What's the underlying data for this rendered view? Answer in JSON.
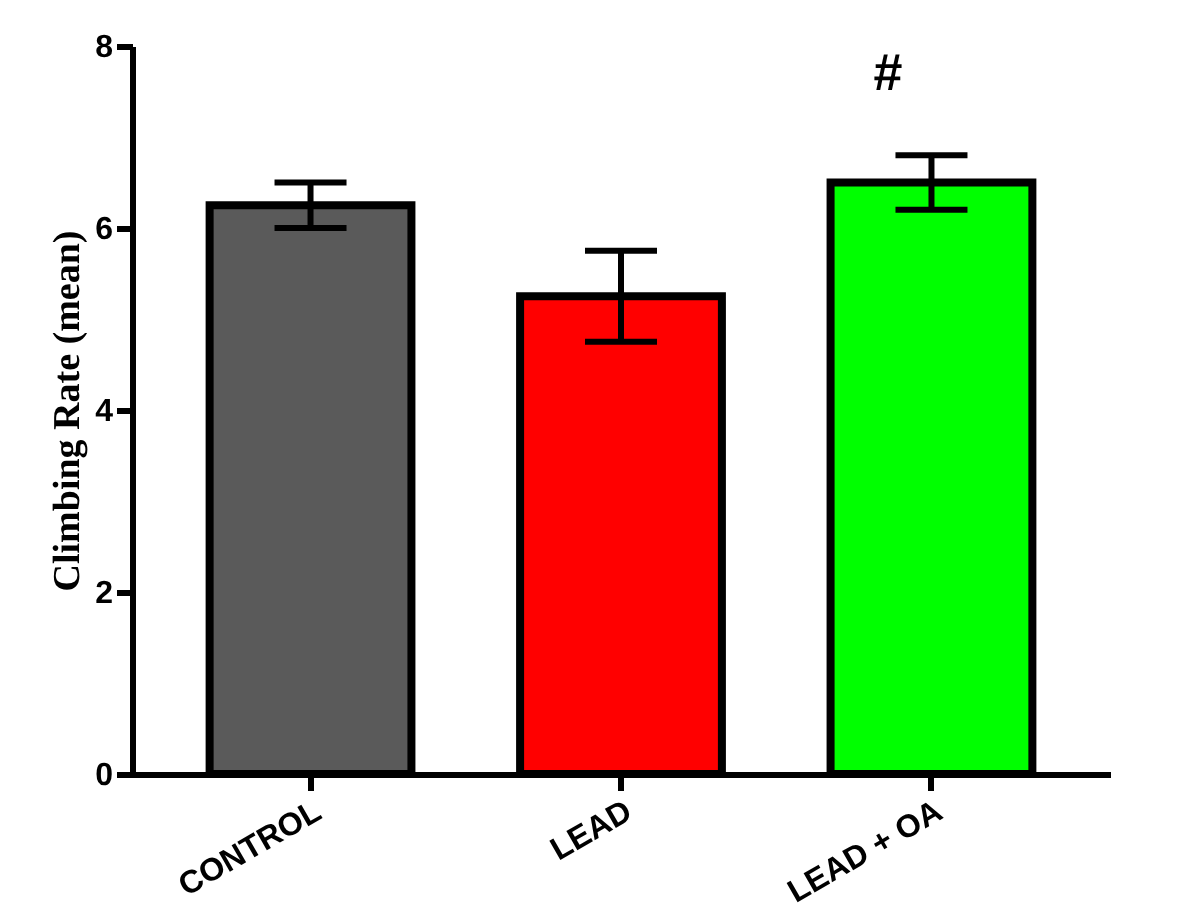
{
  "chart_data": {
    "type": "bar",
    "ylabel": "Climbing Rate (mean)",
    "categories": [
      "CONTROL",
      "LEAD",
      "LEAD + OA"
    ],
    "values": [
      6.25,
      5.25,
      6.5
    ],
    "colors": [
      "#5a5a5a",
      "#ff0000",
      "#00ff00"
    ],
    "errors": [
      0.25,
      0.5,
      0.3
    ],
    "ylim": [
      0,
      8
    ],
    "yticks": [
      0,
      2,
      4,
      6,
      8
    ],
    "annotations": [
      "#"
    ]
  }
}
